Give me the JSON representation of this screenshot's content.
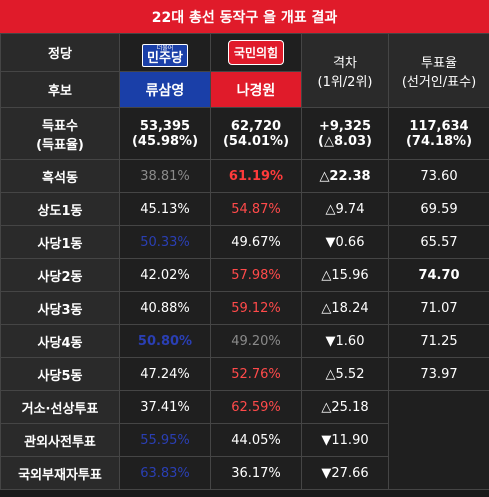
{
  "title": "22대 총선 동작구 을 개표 결과",
  "colors": {
    "accent_red": "#e01b2a",
    "dp_blue": "#1a3fa8",
    "ppp_red": "#e01b2a"
  },
  "header": {
    "party_label": "정당",
    "candidate_label": "후보",
    "dp_logo_small": "더불어",
    "dp_logo_big": "민주당",
    "ppp_logo": "국민의힘",
    "gap_label_1": "격차",
    "gap_label_2": "(1위/2위)",
    "turnout_label_1": "투표율",
    "turnout_label_2": "(선거인/표수)",
    "candidate_dp": "류삼영",
    "candidate_ppp": "나경원"
  },
  "summary": {
    "label_1": "득표수",
    "label_2": "(득표율)",
    "dp_votes": "53,395",
    "dp_rate": "(45.98%)",
    "ppp_votes": "62,720",
    "ppp_rate": "(54.01%)",
    "gap_votes": "+9,325",
    "gap_rate": "(△8.03)",
    "turnout_votes": "117,634",
    "turnout_rate": "(74.18%)"
  },
  "rows": [
    {
      "name": "흑석동",
      "dp": "38.81%",
      "ppp": "61.19%",
      "gap": "△22.38",
      "turnout": "73.60"
    },
    {
      "name": "상도1동",
      "dp": "45.13%",
      "ppp": "54.87%",
      "gap": "△9.74",
      "turnout": "69.59"
    },
    {
      "name": "사당1동",
      "dp": "50.33%",
      "ppp": "49.67%",
      "gap": "▼0.66",
      "turnout": "65.57"
    },
    {
      "name": "사당2동",
      "dp": "42.02%",
      "ppp": "57.98%",
      "gap": "△15.96",
      "turnout": "74.70"
    },
    {
      "name": "사당3동",
      "dp": "40.88%",
      "ppp": "59.12%",
      "gap": "△18.24",
      "turnout": "71.07"
    },
    {
      "name": "사당4동",
      "dp": "50.80%",
      "ppp": "49.20%",
      "gap": "▼1.60",
      "turnout": "71.25"
    },
    {
      "name": "사당5동",
      "dp": "47.24%",
      "ppp": "52.76%",
      "gap": "△5.52",
      "turnout": "73.97"
    },
    {
      "name": "거소·선상투표",
      "dp": "37.41%",
      "ppp": "62.59%",
      "gap": "△25.18",
      "turnout": ""
    },
    {
      "name": "관외사전투표",
      "dp": "55.95%",
      "ppp": "44.05%",
      "gap": "▼11.90",
      "turnout": ""
    },
    {
      "name": "국외부재자투표",
      "dp": "63.83%",
      "ppp": "36.17%",
      "gap": "▼27.66",
      "turnout": ""
    }
  ]
}
